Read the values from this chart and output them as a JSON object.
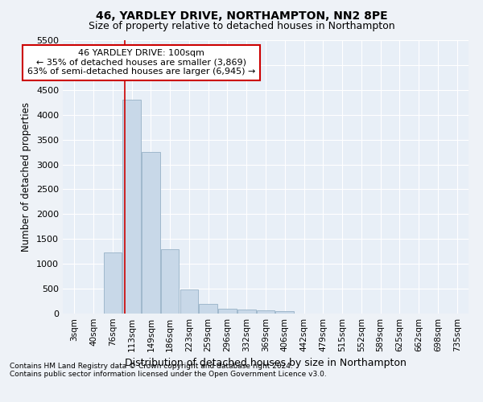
{
  "title1": "46, YARDLEY DRIVE, NORTHAMPTON, NN2 8PE",
  "title2": "Size of property relative to detached houses in Northampton",
  "xlabel": "Distribution of detached houses by size in Northampton",
  "ylabel": "Number of detached properties",
  "categories": [
    "3sqm",
    "40sqm",
    "76sqm",
    "113sqm",
    "149sqm",
    "186sqm",
    "223sqm",
    "259sqm",
    "296sqm",
    "332sqm",
    "369sqm",
    "406sqm",
    "442sqm",
    "479sqm",
    "515sqm",
    "552sqm",
    "589sqm",
    "625sqm",
    "662sqm",
    "698sqm",
    "735sqm"
  ],
  "values": [
    0,
    0,
    1230,
    4300,
    3250,
    1300,
    480,
    200,
    100,
    80,
    60,
    50,
    0,
    0,
    0,
    0,
    0,
    0,
    0,
    0,
    0
  ],
  "bar_color": "#c8d8e8",
  "bar_edgecolor": "#a0b8cc",
  "vline_x_index": 2.63,
  "vline_color": "#cc0000",
  "annotation_text": "46 YARDLEY DRIVE: 100sqm\n← 35% of detached houses are smaller (3,869)\n63% of semi-detached houses are larger (6,945) →",
  "annotation_box_color": "#ffffff",
  "annotation_box_edgecolor": "#cc0000",
  "ylim": [
    0,
    5500
  ],
  "yticks": [
    0,
    500,
    1000,
    1500,
    2000,
    2500,
    3000,
    3500,
    4000,
    4500,
    5000,
    5500
  ],
  "footnote1": "Contains HM Land Registry data © Crown copyright and database right 2024.",
  "footnote2": "Contains public sector information licensed under the Open Government Licence v3.0.",
  "bg_color": "#eef2f7",
  "plot_bg_color": "#e8eff7"
}
